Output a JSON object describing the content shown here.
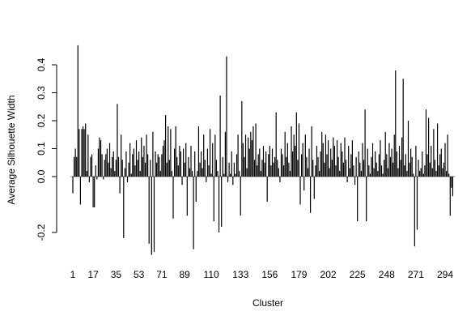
{
  "chart_data": {
    "type": "bar",
    "x_label": "Cluster",
    "y_label": "Average Silhouette Width",
    "color": "#000000",
    "ylim": [
      -0.3,
      0.48
    ],
    "yticks": [
      -0.2,
      {
        "value": 0,
        "label": "0.0"
      },
      0.1,
      0.2,
      0.3,
      0.4
    ],
    "categories": [
      "1",
      null,
      null,
      null,
      null,
      null,
      null,
      null,
      null,
      null,
      null,
      null,
      null,
      null,
      null,
      null,
      "17",
      null,
      null,
      null,
      null,
      null,
      null,
      null,
      null,
      null,
      null,
      null,
      null,
      null,
      null,
      null,
      null,
      null,
      "35",
      null,
      null,
      null,
      null,
      null,
      null,
      null,
      null,
      null,
      null,
      null,
      null,
      null,
      null,
      null,
      null,
      null,
      "53",
      null,
      null,
      null,
      null,
      null,
      null,
      null,
      null,
      null,
      null,
      null,
      null,
      null,
      null,
      null,
      null,
      null,
      "71",
      null,
      null,
      null,
      null,
      null,
      null,
      null,
      null,
      null,
      null,
      null,
      null,
      null,
      null,
      null,
      null,
      null,
      "89",
      null,
      null,
      null,
      null,
      null,
      null,
      null,
      null,
      null,
      null,
      null,
      null,
      null,
      null,
      null,
      null,
      null,
      null,
      null,
      null,
      "110",
      null,
      null,
      null,
      null,
      null,
      null,
      null,
      null,
      null,
      null,
      null,
      null,
      null,
      null,
      null,
      null,
      null,
      null,
      null,
      null,
      null,
      null,
      "133",
      null,
      null,
      null,
      null,
      null,
      null,
      null,
      null,
      null,
      null,
      null,
      null,
      null,
      null,
      null,
      null,
      null,
      null,
      null,
      null,
      null,
      null,
      "156",
      null,
      null,
      null,
      null,
      null,
      null,
      null,
      null,
      null,
      null,
      null,
      null,
      null,
      null,
      null,
      null,
      null,
      null,
      null,
      null,
      null,
      null,
      "179",
      null,
      null,
      null,
      null,
      null,
      null,
      null,
      null,
      null,
      null,
      null,
      null,
      null,
      null,
      null,
      null,
      null,
      null,
      null,
      null,
      null,
      null,
      "202",
      null,
      null,
      null,
      null,
      null,
      null,
      null,
      null,
      null,
      null,
      null,
      null,
      null,
      null,
      null,
      null,
      null,
      null,
      null,
      null,
      null,
      null,
      "225",
      null,
      null,
      null,
      null,
      null,
      null,
      null,
      null,
      null,
      null,
      null,
      null,
      null,
      null,
      null,
      null,
      null,
      null,
      null,
      null,
      null,
      null,
      "248",
      null,
      null,
      null,
      null,
      null,
      null,
      null,
      null,
      null,
      null,
      null,
      null,
      null,
      null,
      null,
      null,
      null,
      null,
      null,
      null,
      null,
      null,
      "271",
      null,
      null,
      null,
      null,
      null,
      null,
      null,
      null,
      null,
      null,
      null,
      null,
      null,
      null,
      null,
      null,
      null,
      null,
      null,
      null,
      null,
      null,
      "294",
      null,
      null,
      null,
      null,
      null,
      null
    ],
    "values": [
      -0.06,
      0.07,
      0.1,
      0.07,
      0.47,
      0.17,
      -0.1,
      0.17,
      0.18,
      0.17,
      0.19,
      0.02,
      0.15,
      -0.02,
      0.07,
      0.08,
      -0.11,
      -0.11,
      0.04,
      -0.01,
      0.1,
      0.14,
      0.13,
      0.08,
      -0.01,
      0.06,
      0.08,
      0.1,
      0.05,
      0.12,
      0.03,
      0.07,
      0.09,
      0.02,
      0.06,
      0.26,
      0.07,
      -0.06,
      0.15,
      0.06,
      -0.22,
      0.03,
      0.09,
      -0.02,
      0.05,
      0.12,
      0.01,
      0.08,
      0.1,
      0.04,
      0.13,
      0.06,
      0.09,
      0.02,
      0.14,
      0.07,
      0.11,
      0.05,
      0.15,
      0.08,
      -0.24,
      0.06,
      -0.28,
      0.16,
      -0.27,
      0.09,
      0.05,
      0.08,
      0.07,
      0.02,
      0.08,
      0.11,
      0.13,
      0.22,
      0.05,
      0.18,
      0.06,
      0.17,
      0.02,
      -0.15,
      0.1,
      0.18,
      0.07,
      0.04,
      0.11,
      0.09,
      -0.03,
      0.1,
      0.05,
      0.12,
      -0.14,
      0.07,
      0.03,
      0.11,
      0.02,
      -0.26,
      0.09,
      -0.09,
      0.02,
      0.18,
      0.05,
      0.09,
      0.03,
      0.15,
      0.06,
      -0.02,
      0.1,
      0.04,
      0.17,
      0.01,
      0.12,
      -0.16,
      0.15,
      0.06,
      0.02,
      -0.2,
      0.29,
      -0.18,
      0.07,
      0.01,
      0.16,
      0.43,
      -0.02,
      0.05,
      0.01,
      0.09,
      -0.03,
      0.05,
      0.01,
      0.08,
      0.15,
      0.02,
      -0.14,
      0.27,
      0.12,
      0.07,
      0.15,
      0.03,
      0.14,
      0.1,
      0.16,
      0.13,
      0.18,
      0.06,
      0.19,
      0.04,
      0.08,
      0.1,
      0.02,
      0.06,
      0.11,
      0.05,
      0.09,
      -0.09,
      0.08,
      0.11,
      0.04,
      0.1,
      0.05,
      0.07,
      0.23,
      0.06,
      0.03,
      -0.02,
      0.1,
      0.08,
      0.04,
      0.16,
      0.07,
      0.12,
      0.05,
      0.02,
      0.18,
      0.09,
      0.15,
      0.11,
      0.23,
      0.06,
      0.19,
      -0.1,
      0.08,
      0.12,
      -0.05,
      0.15,
      0.07,
      0.03,
      0.1,
      -0.13,
      0.18,
      0.06,
      -0.08,
      0.04,
      0.11,
      0.07,
      0.02,
      0.09,
      0.16,
      0.12,
      0.05,
      0.15,
      0.08,
      0.13,
      0.03,
      0.1,
      0.06,
      0.14,
      0.11,
      0.04,
      0.13,
      0.07,
      0.02,
      0.12,
      0.09,
      0.05,
      0.14,
      0.06,
      -0.02,
      0.11,
      0.03,
      0.08,
      0.13,
      0.04,
      -0.03,
      0.07,
      -0.16,
      0.09,
      0.05,
      0.02,
      0.12,
      0.06,
      0.24,
      -0.16,
      0.1,
      0.04,
      0.01,
      0.07,
      0.12,
      0.03,
      0.09,
      0.05,
      0.02,
      0.08,
      0.13,
      0.04,
      0.01,
      0.06,
      0.16,
      0.08,
      0.03,
      0.12,
      0.07,
      0.1,
      0.05,
      0.15,
      0.38,
      0.09,
      0.03,
      0.11,
      0.06,
      0.14,
      0.35,
      0.04,
      0.08,
      0.02,
      0.2,
      0.05,
      0.1,
      0.07,
      0.01,
      -0.25,
      0.11,
      -0.19,
      0.06,
      0.02,
      0.03,
      0.09,
      0.01,
      0.04,
      0.24,
      0.08,
      0.21,
      0.05,
      0.11,
      0.03,
      0.17,
      0.06,
      0.02,
      0.19,
      0.04,
      0.08,
      0.1,
      0.03,
      0.05,
      0.12,
      0.02,
      0.15,
      0.01,
      -0.14,
      -0.04,
      -0.07
    ]
  }
}
